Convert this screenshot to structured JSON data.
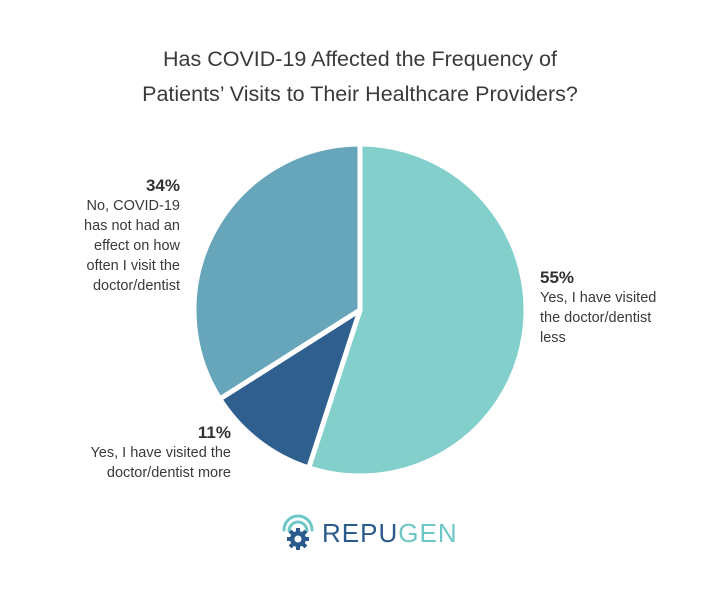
{
  "chart_data": {
    "type": "pie",
    "title_lines": [
      "Has COVID-19 Affected the Frequency of",
      "Patients’ Visits to Their Healthcare Providers?"
    ],
    "slices": [
      {
        "label_lines": [
          "Yes, I have visited",
          "the doctor/dentist",
          "less"
        ],
        "value": 55,
        "pct_label": "55%",
        "color": "#82cfcc"
      },
      {
        "label_lines": [
          "Yes, I have visited the",
          "doctor/dentist more"
        ],
        "value": 11,
        "pct_label": "11%",
        "color": "#2e5f8f"
      },
      {
        "label_lines": [
          "No, COVID-19",
          "has not had an",
          "effect on how",
          "often I visit the",
          "doctor/dentist"
        ],
        "value": 34,
        "pct_label": "34%",
        "color": "#67a5bb"
      }
    ]
  },
  "logo": {
    "text_part1": "REPU",
    "text_part2": "GEN",
    "icon": "repugen-gear-signal-icon"
  }
}
